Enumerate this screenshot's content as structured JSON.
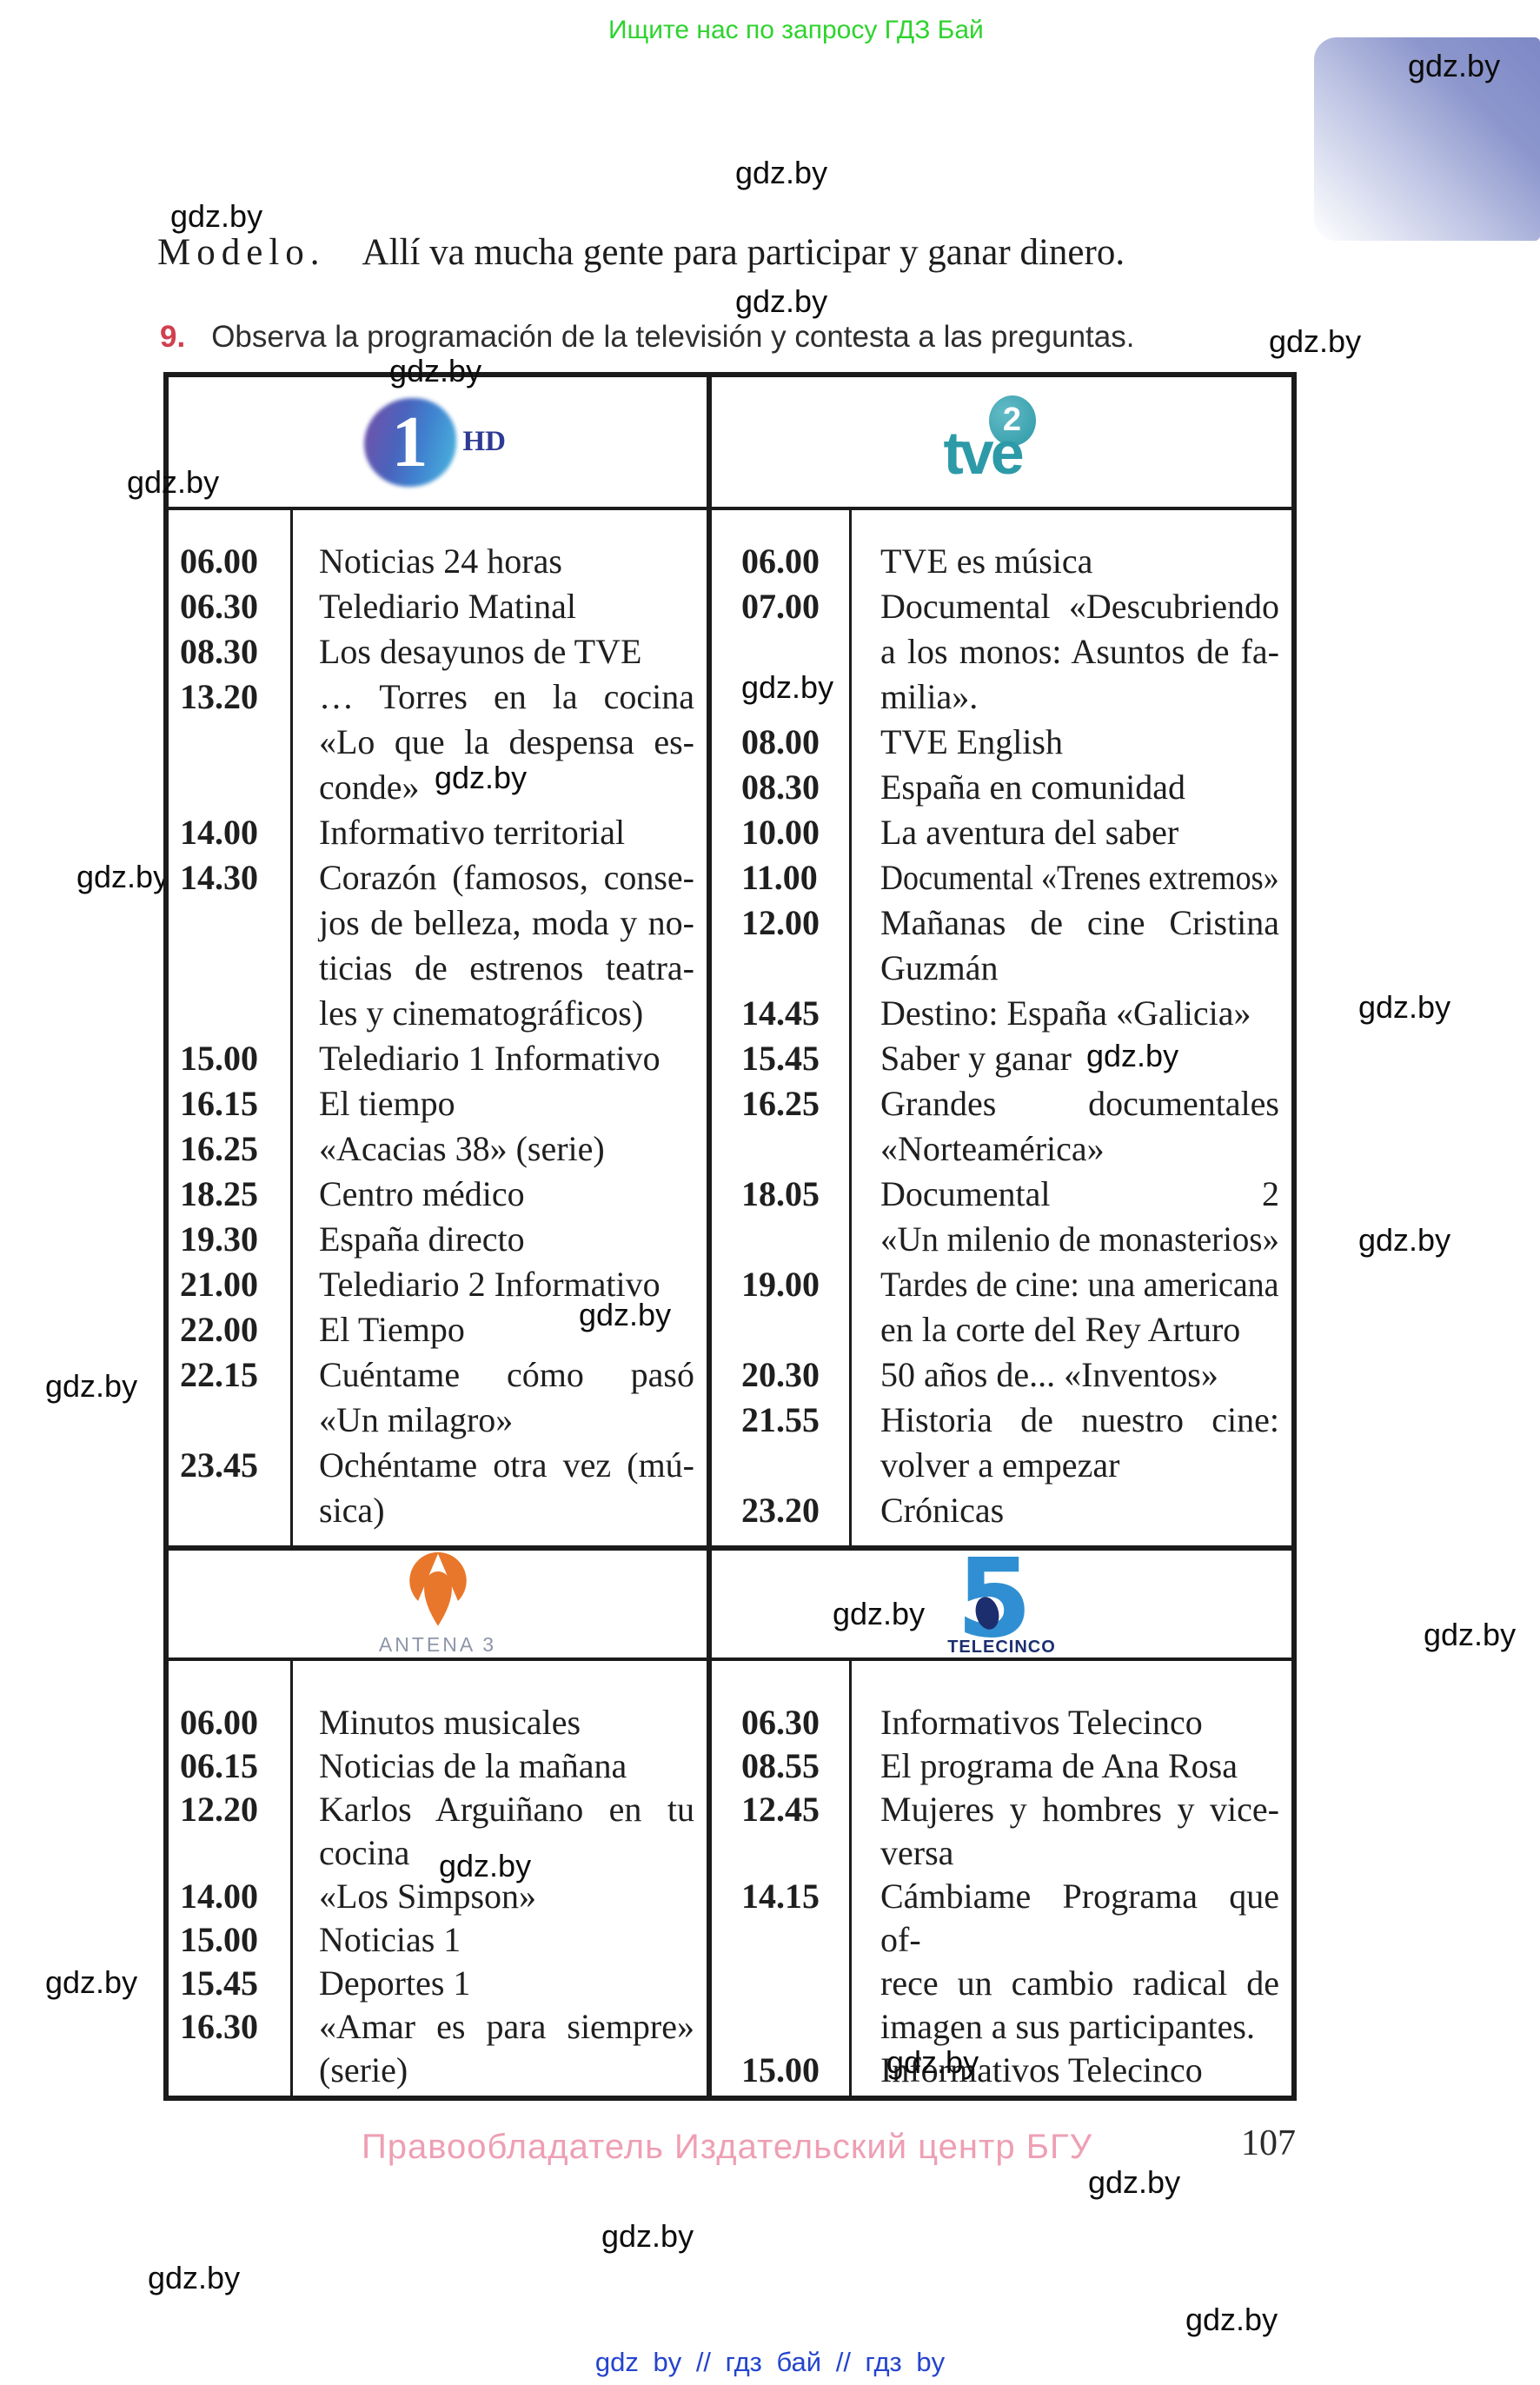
{
  "watermark": {
    "label": "gdz.by"
  },
  "top": {
    "promo": "Ищите нас по запросу ГДЗ Бай"
  },
  "modelo": {
    "label": "Modelo.",
    "sentence": "Allí va mucha gente para participar y ganar dinero."
  },
  "exercise": {
    "number": "9.",
    "text": "Observa la programación de la televisión y contesta a las preguntas."
  },
  "channels": [
    {
      "name": "La 1 HD",
      "logo": {
        "one": "1",
        "hd": "HD"
      },
      "programs": [
        {
          "time": "06.00",
          "lines": [
            "Noticias 24 horas"
          ]
        },
        {
          "time": "06.30",
          "lines": [
            "Telediario Matinal"
          ]
        },
        {
          "time": "08.30",
          "lines": [
            "Los desayunos de TVE"
          ]
        },
        {
          "time": "13.20",
          "lines": [
            "… Torres en la cocina",
            "«Lo que la despensa es-",
            "conde»"
          ]
        },
        {
          "time": "14.00",
          "lines": [
            "Informativo territorial"
          ]
        },
        {
          "time": "14.30",
          "lines": [
            "Corazón (famosos, conse-",
            "jos de belleza, moda y no-",
            "ticias de estrenos teatra-",
            "les y cinematográficos)"
          ]
        },
        {
          "time": "15.00",
          "lines": [
            "Telediario 1 Informativo"
          ]
        },
        {
          "time": "16.15",
          "lines": [
            "El tiempo"
          ]
        },
        {
          "time": "16.25",
          "lines": [
            "«Acacias 38» (serie)"
          ]
        },
        {
          "time": "18.25",
          "lines": [
            "Centro médico"
          ]
        },
        {
          "time": "19.30",
          "lines": [
            "España directo"
          ]
        },
        {
          "time": "21.00",
          "lines": [
            "Telediario 2 Informativo"
          ]
        },
        {
          "time": "22.00",
          "lines": [
            "El Tiempo"
          ]
        },
        {
          "time": "22.15",
          "lines": [
            "Cuéntame cómo pasó",
            "«Un milagro»"
          ]
        },
        {
          "time": "23.45",
          "lines": [
            "Ochéntame otra vez (mú-",
            "sica)"
          ]
        }
      ]
    },
    {
      "name": "TVE 2",
      "logo": {
        "two": "2",
        "word": "tve"
      },
      "programs": [
        {
          "time": "06.00",
          "lines": [
            "TVE es música"
          ]
        },
        {
          "time": "07.00",
          "lines": [
            "Documental «Descubriendo",
            "a los monos: Asuntos de fa-",
            "milia»."
          ]
        },
        {
          "time": "08.00",
          "lines": [
            "TVE English"
          ]
        },
        {
          "time": "08.30",
          "lines": [
            "España en comunidad"
          ]
        },
        {
          "time": "10.00",
          "lines": [
            "La aventura del saber"
          ]
        },
        {
          "time": "11.00",
          "lines": [
            "Documental «Trenes extremos»"
          ]
        },
        {
          "time": "12.00",
          "lines": [
            "Mañanas de cine Cristina",
            "Guzmán"
          ]
        },
        {
          "time": "14.45",
          "lines": [
            "Destino: España «Galicia»"
          ]
        },
        {
          "time": "15.45",
          "lines": [
            "Saber y ganar"
          ]
        },
        {
          "time": "16.25",
          "lines": [
            "Grandes documentales",
            "«Norteamérica»"
          ]
        },
        {
          "time": "18.05",
          "lines": [
            "Documental 2",
            "«Un milenio de monasterios»"
          ]
        },
        {
          "time": "19.00",
          "lines": [
            "Tardes de cine: una americana",
            "en la corte del Rey Arturo"
          ]
        },
        {
          "time": "20.30",
          "lines": [
            "50 años de... «Inventos»"
          ]
        },
        {
          "time": "21.55",
          "lines": [
            "Historia de nuestro cine:",
            "volver a empezar"
          ]
        },
        {
          "time": "23.20",
          "lines": [
            "Crónicas"
          ]
        }
      ]
    },
    {
      "name": "Antena 3",
      "logo": {
        "label": "ANTENA 3"
      },
      "programs": [
        {
          "time": "06.00",
          "lines": [
            "Minutos musicales"
          ]
        },
        {
          "time": "06.15",
          "lines": [
            "Noticias de la mañana"
          ]
        },
        {
          "time": "12.20",
          "lines": [
            "Karlos Arguiñano en tu",
            "cocina"
          ]
        },
        {
          "time": "14.00",
          "lines": [
            "«Los Simpson»"
          ]
        },
        {
          "time": "15.00",
          "lines": [
            "Noticias 1"
          ]
        },
        {
          "time": "15.45",
          "lines": [
            "Deportes 1"
          ]
        },
        {
          "time": "16.30",
          "lines": [
            "«Amar es para siempre»",
            "(serie)"
          ]
        }
      ]
    },
    {
      "name": "Telecinco",
      "logo": {
        "five": "5",
        "label": "TELECINCO"
      },
      "programs": [
        {
          "time": "06.30",
          "lines": [
            "Informativos Telecinco"
          ]
        },
        {
          "time": "08.55",
          "lines": [
            "El programa de Ana Rosa"
          ]
        },
        {
          "time": "12.45",
          "lines": [
            "Mujeres y hombres y vice-",
            "versa"
          ]
        },
        {
          "time": "14.15",
          "lines": [
            "Cámbiame Programa que of-",
            "rece un cambio radical de",
            "imagen a sus participantes."
          ]
        },
        {
          "time": "15.00",
          "lines": [
            "Informativos Telecinco"
          ]
        }
      ]
    }
  ],
  "footer": {
    "copyright": "Правообладатель Издательский центр БГУ",
    "page": "107",
    "links": "gdz by  //  гдз бай  //  гдз by"
  }
}
